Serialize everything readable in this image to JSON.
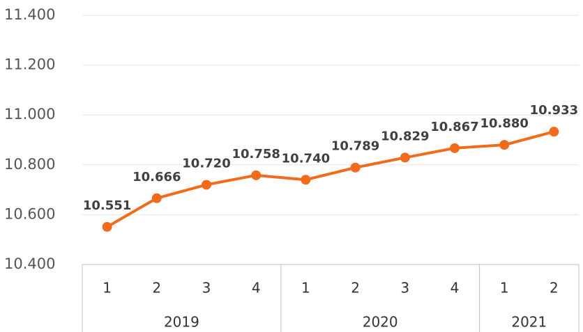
{
  "chart_data": {
    "type": "line",
    "groups": [
      {
        "name": "2019",
        "categories": [
          "1",
          "2",
          "3",
          "4"
        ]
      },
      {
        "name": "2020",
        "categories": [
          "1",
          "2",
          "3",
          "4"
        ]
      },
      {
        "name": "2021",
        "categories": [
          "1",
          "2"
        ]
      }
    ],
    "series": [
      {
        "color": "#f26a1b",
        "values": [
          10551,
          10666,
          10720,
          10758,
          10740,
          10789,
          10829,
          10867,
          10880,
          10933
        ],
        "value_labels": [
          "10.551",
          "10.666",
          "10.720",
          "10.758",
          "10.740",
          "10.789",
          "10.829",
          "10.867",
          "10.880",
          "10.933"
        ]
      }
    ],
    "ylim": [
      10400,
      11400
    ],
    "yticks": [
      {
        "value": 10400,
        "label": "10.400"
      },
      {
        "value": 10600,
        "label": "10.600"
      },
      {
        "value": 10800,
        "label": "10.800"
      },
      {
        "value": 11000,
        "label": "11.000"
      },
      {
        "value": 11200,
        "label": "11.200"
      },
      {
        "value": 11400,
        "label": "11.400"
      }
    ],
    "grid": true
  }
}
